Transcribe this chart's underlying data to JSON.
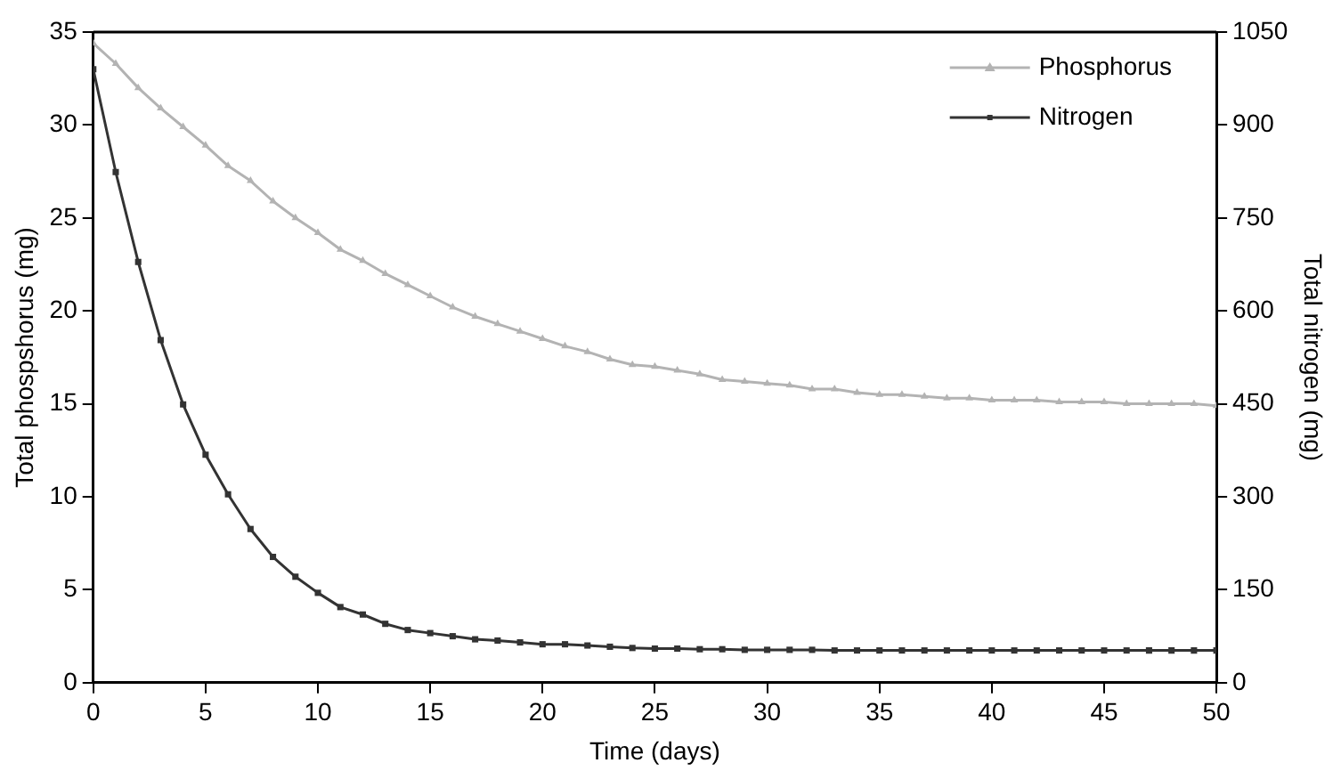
{
  "chart_data": {
    "type": "line",
    "xlabel": "Time (days)",
    "ylabel": "Total phospshorus (mg)",
    "y2label": "Total nitrogen (mg)",
    "x": [
      0,
      1,
      2,
      3,
      4,
      5,
      6,
      7,
      8,
      9,
      10,
      11,
      12,
      13,
      14,
      15,
      16,
      17,
      18,
      19,
      20,
      21,
      22,
      23,
      24,
      25,
      26,
      27,
      28,
      29,
      30,
      31,
      32,
      33,
      34,
      35,
      36,
      37,
      38,
      39,
      40,
      41,
      42,
      43,
      44,
      45,
      46,
      47,
      48,
      49,
      50
    ],
    "series": [
      {
        "name": "Phosphorus",
        "color": "#b3b3b3",
        "marker": "triangle",
        "values": [
          34.4,
          33.3,
          32.0,
          30.9,
          29.9,
          28.9,
          27.8,
          27.0,
          25.9,
          25.0,
          24.2,
          23.3,
          22.7,
          22.0,
          21.4,
          20.8,
          20.2,
          19.7,
          19.3,
          18.9,
          18.5,
          18.1,
          17.8,
          17.4,
          17.1,
          17.0,
          16.8,
          16.6,
          16.3,
          16.2,
          16.1,
          16.0,
          15.8,
          15.8,
          15.6,
          15.5,
          15.5,
          15.4,
          15.3,
          15.3,
          15.2,
          15.2,
          15.2,
          15.1,
          15.1,
          15.1,
          15.0,
          15.0,
          15.0,
          15.0,
          14.9
        ]
      },
      {
        "name": "Nitrogen",
        "color": "#333333",
        "marker": "square",
        "axis": "y2",
        "values": [
          990,
          824,
          679,
          553,
          449,
          368,
          304,
          248,
          203,
          171,
          145,
          122,
          110,
          95,
          85,
          80,
          75,
          70,
          68,
          65,
          62,
          62,
          60,
          58,
          56,
          55,
          55,
          54,
          54,
          53,
          53,
          53,
          53,
          52,
          52,
          52,
          52,
          52,
          52,
          52,
          52,
          52,
          52,
          52,
          52,
          52,
          52,
          52,
          52,
          52,
          52
        ]
      }
    ],
    "xlim": [
      0,
      50
    ],
    "xticks": [
      0,
      5,
      10,
      15,
      20,
      25,
      30,
      35,
      40,
      45,
      50
    ],
    "ylim": [
      0,
      35
    ],
    "yticks": [
      0,
      5,
      10,
      15,
      20,
      25,
      30,
      35
    ],
    "y2lim": [
      0,
      1050
    ],
    "y2ticks": [
      0,
      150,
      300,
      450,
      600,
      750,
      900,
      1050
    ],
    "grid": false,
    "legend": "top right",
    "line_style": "solid"
  }
}
